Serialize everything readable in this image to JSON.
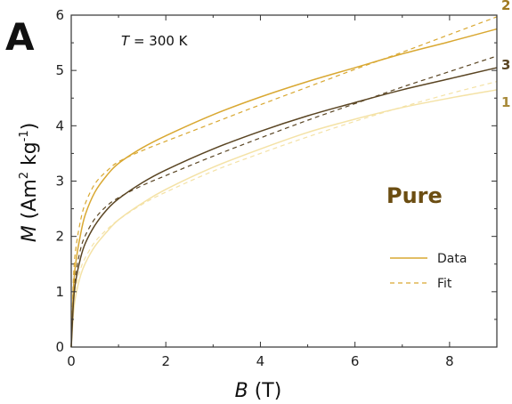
{
  "panel_letter": "A",
  "temperature_label": {
    "italic": "T",
    "rest": " = 300 K"
  },
  "material_label": "Pure",
  "legend": {
    "data_label": "Data",
    "fit_label": "Fit"
  },
  "colors": {
    "curve_1": "#f4e2a6",
    "curve_2": "#d9a832",
    "curve_3": "#5a4523",
    "material_text": "#6b4d12",
    "axis": "#333333"
  },
  "chart_data": {
    "type": "line",
    "xlabel": {
      "italic": "B",
      "rest": " (T)"
    },
    "ylabel": {
      "italic": "M",
      "rest": " (Am",
      "sup1": "2",
      "mid": " kg",
      "sup2": "-1",
      "end": ")"
    },
    "xlim": [
      0,
      9
    ],
    "ylim": [
      0,
      6
    ],
    "xticks": [
      0,
      2,
      4,
      6,
      8
    ],
    "yticks": [
      0,
      1,
      2,
      3,
      4,
      5,
      6
    ],
    "grid": false,
    "legend_position": "right",
    "series": [
      {
        "name": "1",
        "color_key": "curve_1",
        "data": {
          "x": [
            0,
            0.05,
            0.1,
            0.2,
            0.3,
            0.5,
            0.75,
            1,
            1.5,
            2,
            3,
            4,
            5,
            6,
            7,
            8,
            9
          ],
          "y": [
            0,
            0.65,
            0.95,
            1.3,
            1.52,
            1.82,
            2.08,
            2.3,
            2.6,
            2.85,
            3.25,
            3.58,
            3.88,
            4.12,
            4.33,
            4.5,
            4.65
          ]
        },
        "fit": {
          "x": [
            0,
            0.05,
            0.1,
            0.2,
            0.3,
            0.5,
            0.75,
            1,
            1.5,
            2,
            3,
            4,
            5,
            6,
            7,
            8,
            9
          ],
          "y": [
            0,
            0.8,
            1.1,
            1.42,
            1.62,
            1.9,
            2.12,
            2.3,
            2.58,
            2.8,
            3.18,
            3.5,
            3.8,
            4.08,
            4.34,
            4.58,
            4.8
          ]
        }
      },
      {
        "name": "2",
        "color_key": "curve_2",
        "data": {
          "x": [
            0,
            0.05,
            0.1,
            0.2,
            0.3,
            0.5,
            0.75,
            1,
            1.5,
            2,
            3,
            4,
            5,
            6,
            7,
            8,
            9
          ],
          "y": [
            0,
            1.1,
            1.55,
            2.05,
            2.4,
            2.8,
            3.1,
            3.32,
            3.6,
            3.82,
            4.2,
            4.52,
            4.8,
            5.05,
            5.3,
            5.52,
            5.75
          ]
        },
        "fit": {
          "x": [
            0,
            0.05,
            0.1,
            0.2,
            0.3,
            0.5,
            0.75,
            1,
            1.5,
            2,
            3,
            4,
            5,
            6,
            7,
            8,
            9
          ],
          "y": [
            0,
            1.3,
            1.8,
            2.3,
            2.6,
            2.95,
            3.18,
            3.35,
            3.55,
            3.72,
            4.05,
            4.38,
            4.7,
            5.02,
            5.33,
            5.65,
            5.97
          ]
        }
      },
      {
        "name": "3",
        "color_key": "curve_3",
        "data": {
          "x": [
            0,
            0.05,
            0.1,
            0.2,
            0.3,
            0.5,
            0.75,
            1,
            1.5,
            2,
            3,
            4,
            5,
            6,
            7,
            8,
            9
          ],
          "y": [
            0,
            0.85,
            1.22,
            1.62,
            1.88,
            2.2,
            2.48,
            2.68,
            2.97,
            3.2,
            3.58,
            3.9,
            4.18,
            4.42,
            4.65,
            4.85,
            5.05
          ]
        },
        "fit": {
          "x": [
            0,
            0.05,
            0.1,
            0.2,
            0.3,
            0.5,
            0.75,
            1,
            1.5,
            2,
            3,
            4,
            5,
            6,
            7,
            8,
            9
          ],
          "y": [
            0,
            0.95,
            1.35,
            1.78,
            2.02,
            2.32,
            2.55,
            2.7,
            2.92,
            3.1,
            3.45,
            3.78,
            4.1,
            4.4,
            4.7,
            4.98,
            5.26
          ]
        }
      }
    ]
  }
}
